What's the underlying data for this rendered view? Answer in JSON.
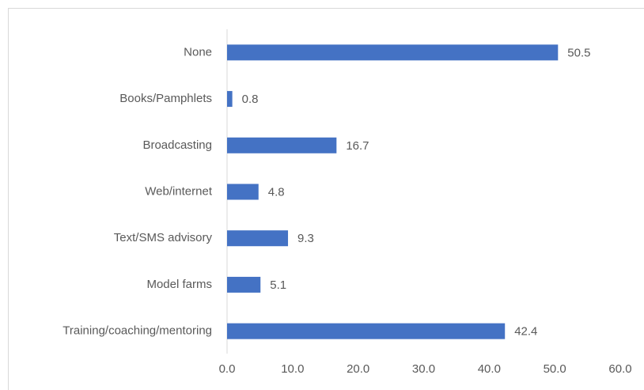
{
  "chart_data": {
    "type": "bar",
    "categories": [
      "None",
      "Books/Pamphlets",
      "Broadcasting",
      "Web/internet",
      "Text/SMS advisory",
      "Model farms",
      "Training/coaching/mentoring"
    ],
    "values": [
      50.5,
      0.8,
      16.7,
      4.8,
      9.3,
      5.1,
      42.4
    ],
    "color": "#4472c4",
    "xlim": [
      0,
      60
    ],
    "xticks": [
      {
        "value": 0,
        "label": "0.0"
      },
      {
        "value": 10,
        "label": "10.0"
      },
      {
        "value": 20,
        "label": "20.0"
      },
      {
        "value": 30,
        "label": "30.0"
      },
      {
        "value": 40,
        "label": "40.0"
      },
      {
        "value": 50,
        "label": "50.0"
      },
      {
        "value": 60,
        "label": "60.0"
      }
    ],
    "grid": false
  }
}
